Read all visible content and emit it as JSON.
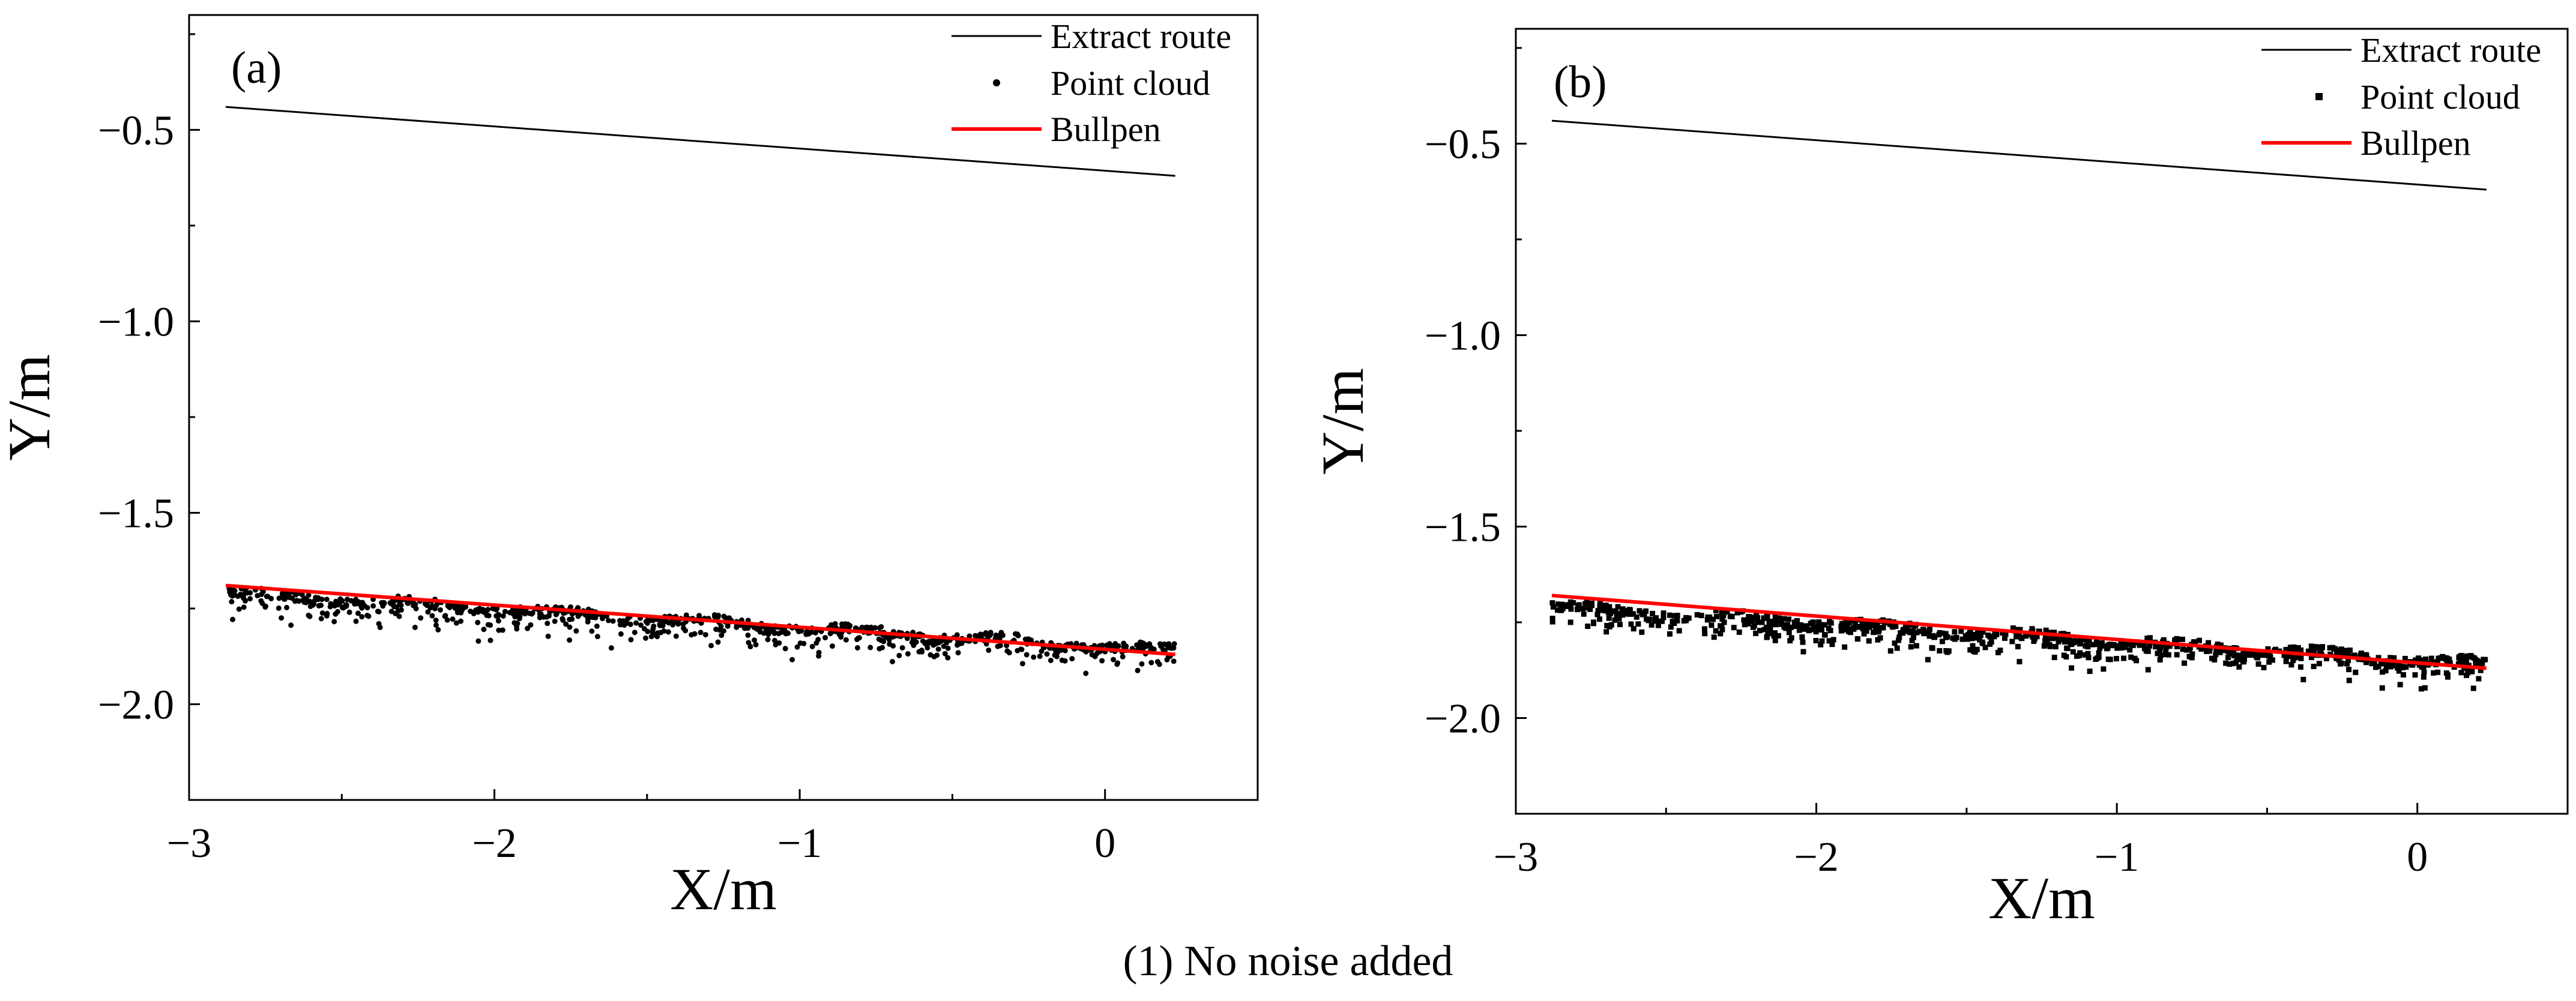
{
  "figure": {
    "caption": "(1) No noise added"
  },
  "chart_data": [
    {
      "type": "scatter",
      "panel_label": "(a)",
      "xlabel": "X/m",
      "ylabel": "Y/m",
      "xlim": [
        -3.0,
        0.5
      ],
      "ylim": [
        -2.25,
        -0.2
      ],
      "xticks": [
        -3,
        -2,
        -1,
        0
      ],
      "xtick_labels": [
        "−3",
        "−2",
        "−1",
        "0"
      ],
      "yticks": [
        -0.5,
        -1.0,
        -1.5,
        -2.0
      ],
      "ytick_labels": [
        "−0.5",
        "−1.0",
        "−1.5",
        "−2.0"
      ],
      "grid": false,
      "legend": {
        "placement": "top-right",
        "entries": [
          "Extract route",
          "Point cloud",
          "Bullpen"
        ]
      },
      "marker": "circle",
      "series": [
        {
          "name": "Extract route",
          "kind": "line",
          "color": "#000000",
          "x": [
            -2.88,
            0.23
          ],
          "y": [
            -0.44,
            -0.62
          ]
        },
        {
          "name": "Point cloud",
          "kind": "scatter",
          "color": "#000000",
          "x_range": [
            -2.88,
            0.23
          ],
          "y_start": -1.71,
          "y_end": -1.86,
          "spread_below": 0.09,
          "count": 900
        },
        {
          "name": "Bullpen",
          "kind": "line",
          "color": "#ff0000",
          "x": [
            -2.88,
            0.23
          ],
          "y": [
            -1.69,
            -1.87
          ]
        }
      ]
    },
    {
      "type": "scatter",
      "panel_label": "(b)",
      "xlabel": "X/m",
      "ylabel": "Y/m",
      "xlim": [
        -3.0,
        0.5
      ],
      "ylim": [
        -2.25,
        -0.2
      ],
      "xticks": [
        -3,
        -2,
        -1,
        0
      ],
      "xtick_labels": [
        "−3",
        "−2",
        "−1",
        "0"
      ],
      "yticks": [
        -0.5,
        -1.0,
        -1.5,
        -2.0
      ],
      "ytick_labels": [
        "−0.5",
        "−1.0",
        "−1.5",
        "−2.0"
      ],
      "grid": false,
      "legend": {
        "placement": "top-right",
        "entries": [
          "Extract route",
          "Point cloud",
          "Bullpen"
        ]
      },
      "marker": "square",
      "series": [
        {
          "name": "Extract route",
          "kind": "line",
          "color": "#000000",
          "x": [
            -2.88,
            0.23
          ],
          "y": [
            -0.44,
            -0.62
          ]
        },
        {
          "name": "Point cloud",
          "kind": "scatter",
          "color": "#000000",
          "x_range": [
            -2.88,
            0.23
          ],
          "y_start": -1.71,
          "y_end": -1.86,
          "spread_below": 0.09,
          "count": 900
        },
        {
          "name": "Bullpen",
          "kind": "line",
          "color": "#ff0000",
          "x": [
            -2.88,
            0.23
          ],
          "y": [
            -1.68,
            -1.87
          ]
        }
      ]
    }
  ]
}
